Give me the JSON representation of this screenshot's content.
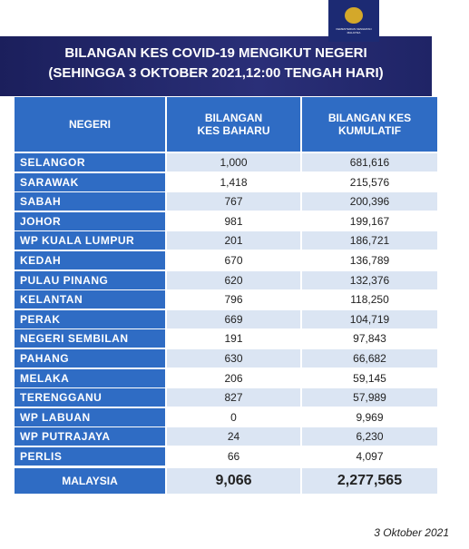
{
  "header": {
    "logo_text": "KEMENTERIAN KESIHATAN MALAYSIA",
    "title": "BILANGAN KES COVID-19 MENGIKUT NEGERI",
    "subtitle": "(SEHINGGA 3 OKTOBER 2021,12:00 TENGAH HARI)"
  },
  "table": {
    "columns": [
      "NEGERI",
      "BILANGAN KES BAHARU",
      "BILANGAN KES KUMULATIF"
    ],
    "rows": [
      [
        "SELANGOR",
        "1,000",
        "681,616"
      ],
      [
        "SARAWAK",
        "1,418",
        "215,576"
      ],
      [
        "SABAH",
        "767",
        "200,396"
      ],
      [
        "JOHOR",
        "981",
        "199,167"
      ],
      [
        "WP KUALA LUMPUR",
        "201",
        "186,721"
      ],
      [
        "KEDAH",
        "670",
        "136,789"
      ],
      [
        "PULAU PINANG",
        "620",
        "132,376"
      ],
      [
        "KELANTAN",
        "796",
        "118,250"
      ],
      [
        "PERAK",
        "669",
        "104,719"
      ],
      [
        "NEGERI SEMBILAN",
        "191",
        "97,843"
      ],
      [
        "PAHANG",
        "630",
        "66,682"
      ],
      [
        "MELAKA",
        "206",
        "59,145"
      ],
      [
        "TERENGGANU",
        "827",
        "57,989"
      ],
      [
        "WP LABUAN",
        "0",
        "9,969"
      ],
      [
        "WP PUTRAJAYA",
        "24",
        "6,230"
      ],
      [
        "PERLIS",
        "66",
        "4,097"
      ]
    ],
    "total": [
      "MALAYSIA",
      "9,066",
      "2,277,565"
    ]
  },
  "footer": {
    "date": "3 Oktober 2021"
  }
}
